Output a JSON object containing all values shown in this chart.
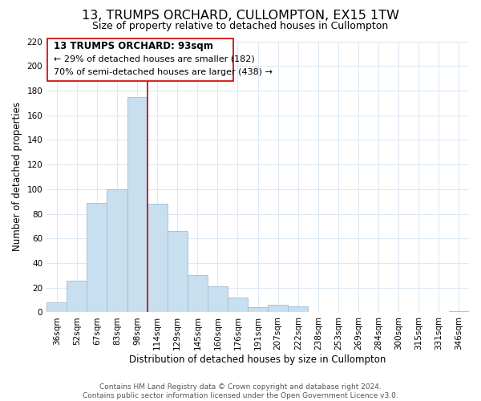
{
  "title": "13, TRUMPS ORCHARD, CULLOMPTON, EX15 1TW",
  "subtitle": "Size of property relative to detached houses in Cullompton",
  "xlabel": "Distribution of detached houses by size in Cullompton",
  "ylabel": "Number of detached properties",
  "bar_labels": [
    "36sqm",
    "52sqm",
    "67sqm",
    "83sqm",
    "98sqm",
    "114sqm",
    "129sqm",
    "145sqm",
    "160sqm",
    "176sqm",
    "191sqm",
    "207sqm",
    "222sqm",
    "238sqm",
    "253sqm",
    "269sqm",
    "284sqm",
    "300sqm",
    "315sqm",
    "331sqm",
    "346sqm"
  ],
  "bar_values": [
    8,
    26,
    89,
    100,
    175,
    88,
    66,
    30,
    21,
    12,
    4,
    6,
    5,
    0,
    0,
    0,
    0,
    0,
    0,
    0,
    1
  ],
  "bar_color": "#c8dff0",
  "bar_edge_color": "#a0bdd8",
  "vline_x": 4.5,
  "vline_color": "#cc0000",
  "ylim": [
    0,
    220
  ],
  "yticks": [
    0,
    20,
    40,
    60,
    80,
    100,
    120,
    140,
    160,
    180,
    200,
    220
  ],
  "ann_line1": "13 TRUMPS ORCHARD: 93sqm",
  "ann_line2": "← 29% of detached houses are smaller (182)",
  "ann_line3": "70% of semi-detached houses are larger (438) →",
  "footer_line1": "Contains HM Land Registry data © Crown copyright and database right 2024.",
  "footer_line2": "Contains public sector information licensed under the Open Government Licence v3.0.",
  "grid_color": "#dce9f5",
  "background_color": "#ffffff",
  "title_fontsize": 11.5,
  "subtitle_fontsize": 9,
  "axis_label_fontsize": 8.5,
  "tick_fontsize": 7.5,
  "annotation_fontsize": 8.5,
  "footer_fontsize": 6.5
}
